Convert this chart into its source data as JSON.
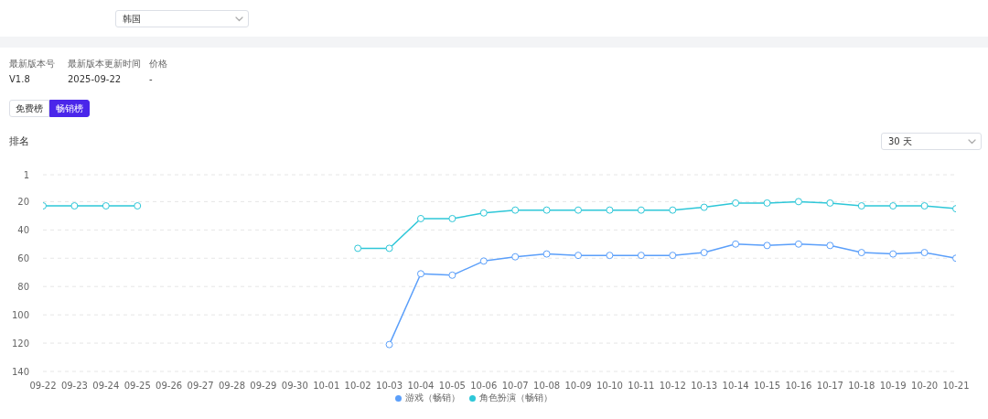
{
  "chart_data": {
    "type": "line",
    "ylabel": "排名",
    "categories": [
      "09-22",
      "09-23",
      "09-24",
      "09-25",
      "09-26",
      "09-27",
      "09-28",
      "09-29",
      "09-30",
      "10-01",
      "10-02",
      "10-03",
      "10-04",
      "10-05",
      "10-06",
      "10-07",
      "10-08",
      "10-09",
      "10-10",
      "10-11",
      "10-12",
      "10-13",
      "10-14",
      "10-15",
      "10-16",
      "10-17",
      "10-18",
      "10-19",
      "10-20",
      "10-21"
    ],
    "series": [
      {
        "name": "游戏（畅销）",
        "color": "#5b9ffa",
        "values": [
          null,
          null,
          null,
          null,
          null,
          null,
          null,
          null,
          null,
          null,
          null,
          121,
          71,
          72,
          62,
          59,
          57,
          58,
          58,
          58,
          58,
          56,
          50,
          51,
          50,
          51,
          56,
          57,
          56,
          60
        ]
      },
      {
        "name": "角色扮演（畅销）",
        "color": "#2ec7d8",
        "values": [
          23,
          23,
          23,
          23,
          null,
          null,
          null,
          null,
          null,
          null,
          53,
          53,
          32,
          32,
          28,
          26,
          26,
          26,
          26,
          26,
          26,
          24,
          21,
          21,
          20,
          21,
          23,
          23,
          23,
          25
        ]
      }
    ],
    "ylim": [
      140,
      1
    ],
    "yticks": [
      1,
      20,
      40,
      60,
      80,
      100,
      120,
      140
    ],
    "grid": "y",
    "legend": "bottom",
    "marker": "circle",
    "annotations": [
      "韩国",
      "最新版本号",
      "V1.8",
      "最新版本更新时间",
      "2025-09-22",
      "价格",
      "-",
      "免费榜",
      "畅销榜",
      "30 天"
    ]
  }
}
